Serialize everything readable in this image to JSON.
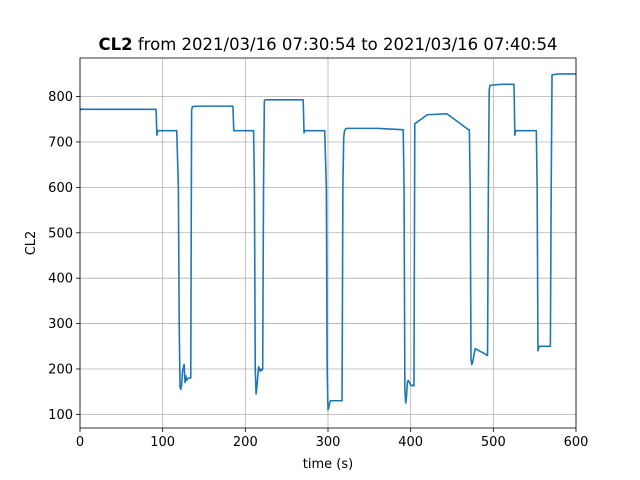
{
  "chart_data": {
    "type": "line",
    "title_bold": "CL2",
    "title_rest": " from 2021/03/16 07:30:54 to 2021/03/16 07:40:54",
    "xlabel": "time (s)",
    "ylabel": "CL2",
    "xlim": [
      0,
      600
    ],
    "ylim": [
      70,
      885
    ],
    "xticks": [
      0,
      100,
      200,
      300,
      400,
      500,
      600
    ],
    "yticks": [
      100,
      200,
      300,
      400,
      500,
      600,
      700,
      800
    ],
    "grid": true,
    "series": [
      {
        "color": "#1f77b4",
        "x": [
          0,
          2,
          3,
          92,
          93,
          94,
          117,
          119,
          120,
          121,
          122,
          123,
          124,
          126,
          127,
          128,
          129,
          131,
          133,
          134,
          135,
          136,
          145,
          185,
          186,
          210,
          211,
          212,
          213,
          214,
          216,
          218,
          219,
          220,
          221,
          222,
          223,
          224,
          240,
          270,
          271,
          272,
          273,
          296,
          298,
          299,
          300,
          301,
          302,
          303,
          305,
          317,
          318,
          319,
          320,
          322,
          340,
          360,
          390,
          391,
          392,
          393,
          394,
          395,
          396,
          397,
          400,
          402,
          403,
          404,
          405,
          420,
          443,
          444,
          470,
          471,
          472,
          473,
          474,
          475,
          478,
          491,
          492,
          493,
          494,
          495,
          496,
          510,
          524,
          525,
          526,
          527,
          551,
          552,
          553,
          554,
          555,
          556,
          567,
          569,
          570,
          571,
          580,
          600
        ],
        "y": [
          770,
          773,
          772,
          772,
          715,
          725,
          725,
          600,
          300,
          160,
          155,
          165,
          195,
          210,
          170,
          185,
          175,
          180,
          180,
          180,
          770,
          778,
          779,
          779,
          725,
          725,
          600,
          200,
          145,
          160,
          205,
          195,
          200,
          197,
          200,
          600,
          790,
          793,
          793,
          793,
          720,
          725,
          725,
          725,
          600,
          200,
          110,
          115,
          125,
          130,
          130,
          130,
          600,
          710,
          725,
          730,
          730,
          730,
          727,
          727,
          600,
          150,
          125,
          140,
          170,
          175,
          165,
          163,
          165,
          163,
          740,
          760,
          762,
          762,
          727,
          727,
          600,
          220,
          210,
          215,
          245,
          232,
          230,
          230,
          600,
          815,
          825,
          827,
          827,
          827,
          715,
          725,
          725,
          725,
          600,
          240,
          248,
          250,
          250,
          250,
          600,
          848,
          850,
          850
        ]
      }
    ]
  }
}
